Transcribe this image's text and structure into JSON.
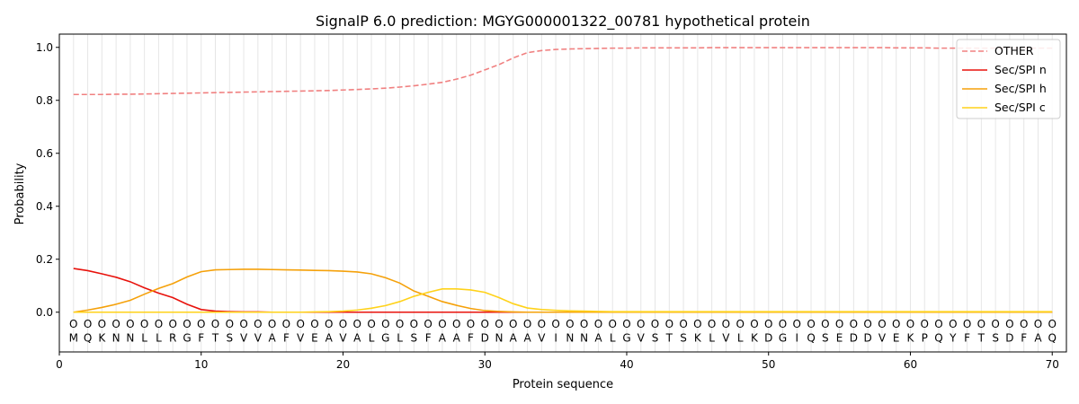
{
  "chart_data": {
    "type": "line",
    "title": "SignalP 6.0 prediction: MGYG000001322_00781 hypothetical protein",
    "xlabel": "Protein sequence",
    "ylabel": "Probability",
    "xlim": [
      0,
      71
    ],
    "ylim": [
      -0.15,
      1.05
    ],
    "xticks": [
      0,
      10,
      20,
      30,
      40,
      50,
      60,
      70
    ],
    "yticks": [
      0.0,
      0.2,
      0.4,
      0.6,
      0.8,
      1.0
    ],
    "grid": "vertical lines at each residue",
    "legend_position": "top-right",
    "sequence": [
      "M",
      "Q",
      "K",
      "N",
      "N",
      "L",
      "L",
      "R",
      "G",
      "F",
      "T",
      "S",
      "V",
      "V",
      "A",
      "F",
      "V",
      "E",
      "A",
      "V",
      "A",
      "L",
      "G",
      "L",
      "S",
      "F",
      "A",
      "A",
      "F",
      "D",
      "N",
      "A",
      "A",
      "V",
      "I",
      "N",
      "N",
      "A",
      "L",
      "G",
      "V",
      "S",
      "T",
      "S",
      "K",
      "L",
      "V",
      "L",
      "K",
      "D",
      "G",
      "I",
      "Q",
      "S",
      "E",
      "D",
      "D",
      "V",
      "E",
      "K",
      "P",
      "Q",
      "Y",
      "F",
      "T",
      "S",
      "D",
      "F",
      "A",
      "Q"
    ],
    "labels": [
      "O",
      "O",
      "O",
      "O",
      "O",
      "O",
      "O",
      "O",
      "O",
      "O",
      "O",
      "O",
      "O",
      "O",
      "O",
      "O",
      "O",
      "O",
      "O",
      "O",
      "O",
      "O",
      "O",
      "O",
      "O",
      "O",
      "O",
      "O",
      "O",
      "O",
      "O",
      "O",
      "O",
      "O",
      "O",
      "O",
      "O",
      "O",
      "O",
      "O",
      "O",
      "O",
      "O",
      "O",
      "O",
      "O",
      "O",
      "O",
      "O",
      "O",
      "O",
      "O",
      "O",
      "O",
      "O",
      "O",
      "O",
      "O",
      "O",
      "O",
      "O",
      "O",
      "O",
      "O",
      "O",
      "O",
      "O",
      "O",
      "O",
      "O"
    ],
    "x": [
      1,
      2,
      3,
      4,
      5,
      6,
      7,
      8,
      9,
      10,
      11,
      12,
      13,
      14,
      15,
      16,
      17,
      18,
      19,
      20,
      21,
      22,
      23,
      24,
      25,
      26,
      27,
      28,
      29,
      30,
      31,
      32,
      33,
      34,
      35,
      36,
      37,
      38,
      39,
      40,
      41,
      42,
      43,
      44,
      45,
      46,
      47,
      48,
      49,
      50,
      51,
      52,
      53,
      54,
      55,
      56,
      57,
      58,
      59,
      60,
      61,
      62,
      63,
      64,
      65,
      66,
      67,
      68,
      69,
      70
    ],
    "series": [
      {
        "name": "OTHER",
        "color": "#f08080",
        "dashed": true,
        "values": [
          0.822,
          0.822,
          0.822,
          0.823,
          0.823,
          0.824,
          0.825,
          0.826,
          0.827,
          0.828,
          0.829,
          0.83,
          0.831,
          0.832,
          0.833,
          0.834,
          0.835,
          0.836,
          0.837,
          0.839,
          0.841,
          0.843,
          0.846,
          0.85,
          0.855,
          0.861,
          0.868,
          0.88,
          0.895,
          0.915,
          0.935,
          0.96,
          0.98,
          0.988,
          0.992,
          0.994,
          0.995,
          0.996,
          0.997,
          0.997,
          0.998,
          0.998,
          0.998,
          0.998,
          0.998,
          0.999,
          0.999,
          0.999,
          0.999,
          0.999,
          0.999,
          0.999,
          0.999,
          0.999,
          0.999,
          0.999,
          0.999,
          0.999,
          0.998,
          0.998,
          0.998,
          0.997,
          0.997,
          0.997,
          0.997,
          0.997,
          0.997,
          0.997,
          0.997,
          0.997
        ]
      },
      {
        "name": "Sec/SPI n",
        "color": "#e8120c",
        "dashed": false,
        "values": [
          0.165,
          0.157,
          0.145,
          0.132,
          0.115,
          0.092,
          0.072,
          0.055,
          0.03,
          0.01,
          0.004,
          0.002,
          0.001,
          0.001,
          0,
          0,
          0,
          0,
          0,
          0,
          0,
          0,
          0,
          0,
          0,
          0,
          0,
          0,
          0,
          0,
          0,
          0,
          0,
          0,
          0,
          0,
          0,
          0,
          0,
          0,
          0,
          0,
          0,
          0,
          0,
          0,
          0,
          0,
          0,
          0,
          0,
          0,
          0,
          0,
          0,
          0,
          0,
          0,
          0,
          0,
          0,
          0,
          0,
          0,
          0,
          0,
          0,
          0,
          0,
          0
        ]
      },
      {
        "name": "Sec/SPI h",
        "color": "#f5a10a",
        "dashed": false,
        "values": [
          0.0,
          0.008,
          0.018,
          0.03,
          0.045,
          0.068,
          0.09,
          0.108,
          0.133,
          0.153,
          0.16,
          0.161,
          0.162,
          0.162,
          0.161,
          0.16,
          0.159,
          0.158,
          0.157,
          0.155,
          0.152,
          0.145,
          0.13,
          0.11,
          0.08,
          0.06,
          0.04,
          0.026,
          0.014,
          0.006,
          0.003,
          0.001,
          0,
          0,
          0,
          0,
          0,
          0,
          0,
          0,
          0,
          0,
          0,
          0,
          0,
          0,
          0,
          0,
          0,
          0,
          0,
          0,
          0,
          0,
          0,
          0,
          0,
          0,
          0,
          0,
          0,
          0,
          0,
          0,
          0,
          0,
          0,
          0,
          0,
          0
        ]
      },
      {
        "name": "Sec/SPI c",
        "color": "#ffd21a",
        "dashed": false,
        "values": [
          0,
          0,
          0,
          0,
          0,
          0,
          0,
          0,
          0,
          0,
          0,
          0,
          0,
          0,
          0,
          0,
          0,
          0.001,
          0.002,
          0.004,
          0.008,
          0.015,
          0.025,
          0.04,
          0.06,
          0.075,
          0.088,
          0.088,
          0.084,
          0.075,
          0.055,
          0.032,
          0.016,
          0.01,
          0.007,
          0.005,
          0.004,
          0.003,
          0.002,
          0.002,
          0.002,
          0.002,
          0.002,
          0.002,
          0.002,
          0.002,
          0.002,
          0.002,
          0.002,
          0.002,
          0.002,
          0.002,
          0.002,
          0.002,
          0.002,
          0.002,
          0.002,
          0.002,
          0.002,
          0.002,
          0.002,
          0.002,
          0.002,
          0.002,
          0.002,
          0.002,
          0.002,
          0.002,
          0.002,
          0.002
        ]
      }
    ]
  }
}
